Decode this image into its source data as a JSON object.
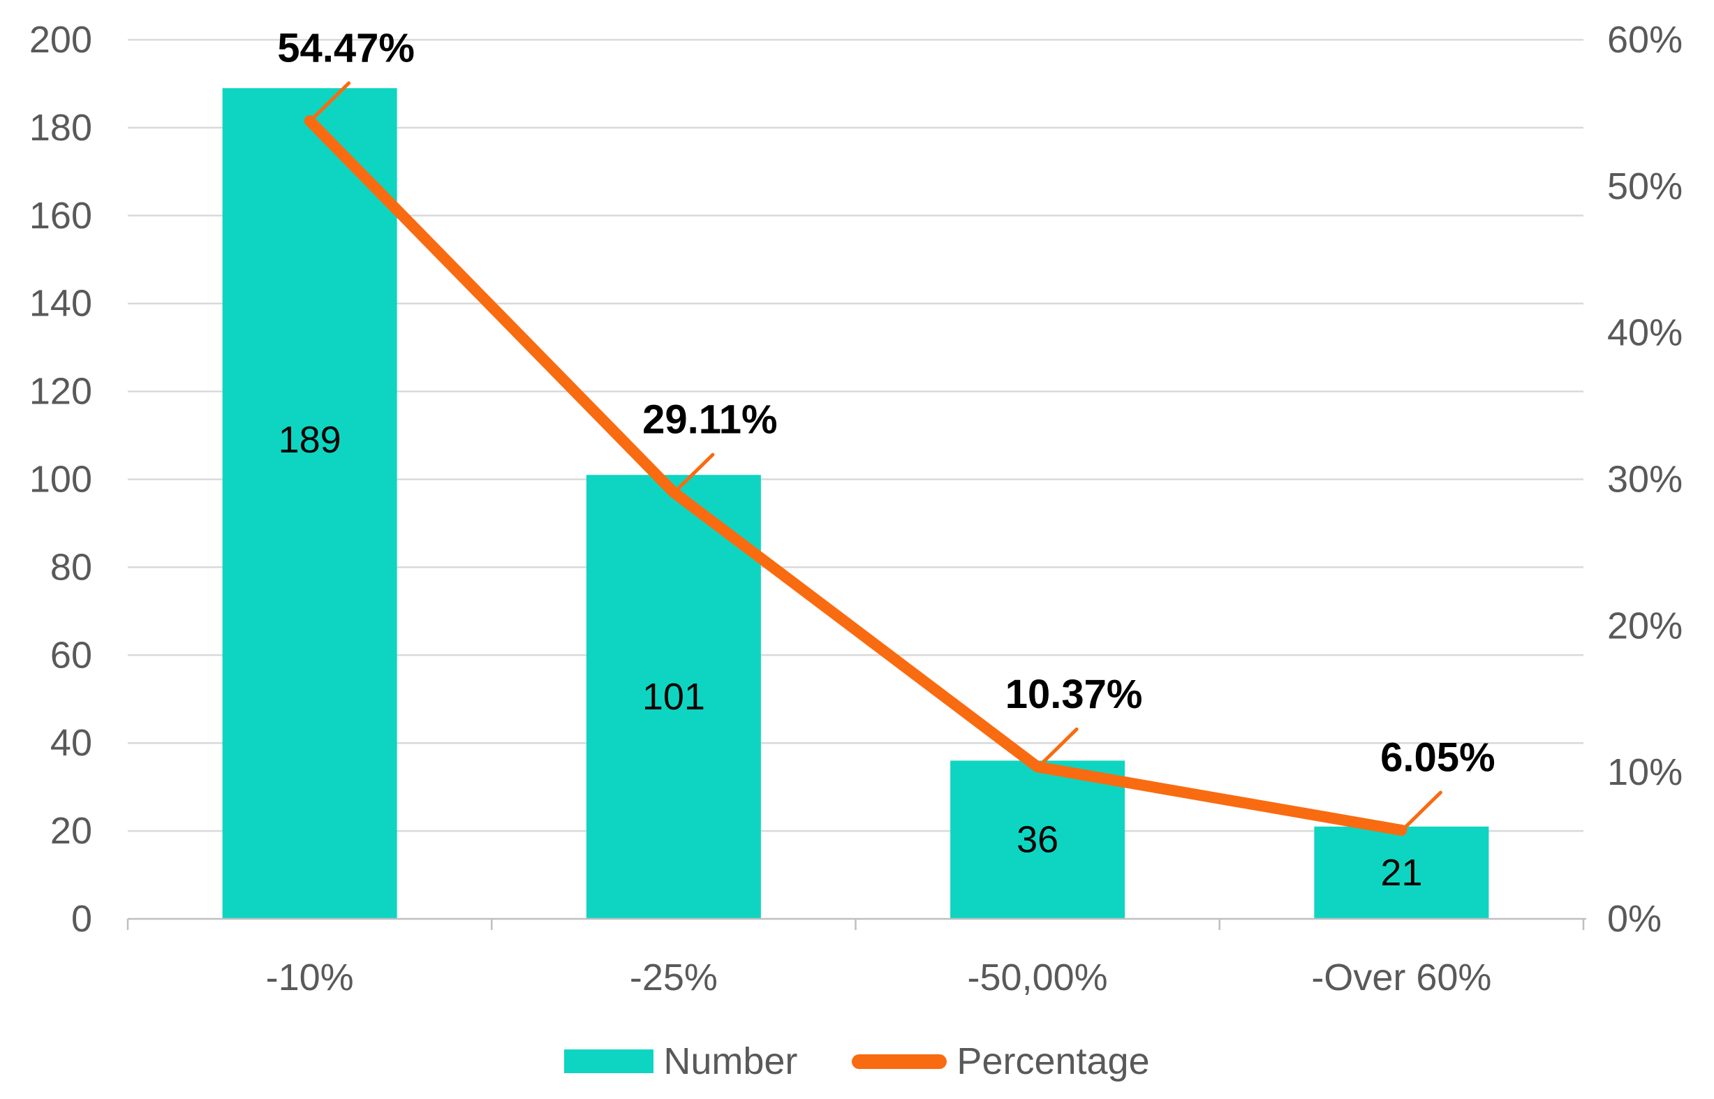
{
  "chart_data": {
    "type": "combo",
    "title": "",
    "categories": [
      "-10%",
      "-25%",
      "-50,00%",
      "-Over 60%"
    ],
    "series": [
      {
        "name": "Number",
        "type": "bar",
        "axis": "left",
        "values": [
          189,
          101,
          36,
          21
        ],
        "data_labels": [
          "189",
          "101",
          "36",
          "21"
        ],
        "color": "#0ED5C1"
      },
      {
        "name": "Percentage",
        "type": "line",
        "axis": "right",
        "values": [
          54.47,
          29.11,
          10.37,
          6.05
        ],
        "data_labels": [
          "54.47%",
          "29.11%",
          "10.37%",
          "6.05%"
        ],
        "color": "#F96B10"
      }
    ],
    "left_axis": {
      "min": 0,
      "max": 200,
      "step": 20,
      "tick_values": [
        0,
        20,
        40,
        60,
        80,
        100,
        120,
        140,
        160,
        180,
        200
      ],
      "tick_labels": [
        "0",
        "20",
        "40",
        "60",
        "80",
        "100",
        "120",
        "140",
        "160",
        "180",
        "200"
      ]
    },
    "right_axis": {
      "min": 0,
      "max": 60,
      "step": 10,
      "tick_values": [
        0,
        10,
        20,
        30,
        40,
        50,
        60
      ],
      "tick_labels": [
        "0%",
        "10%",
        "20%",
        "30%",
        "40%",
        "50%",
        "60%"
      ]
    },
    "grid": true,
    "legend_position": "bottom",
    "colors": {
      "bar": "#0ED5C1",
      "line": "#F96B10",
      "gridline": "#D9D9D9",
      "axis_line": "#BFBFBF",
      "tick_text": "#595959",
      "data_label_text": "#000000"
    }
  },
  "legend": {
    "items": [
      {
        "label": "Number",
        "swatch": "bar"
      },
      {
        "label": "Percentage",
        "swatch": "line"
      }
    ]
  }
}
